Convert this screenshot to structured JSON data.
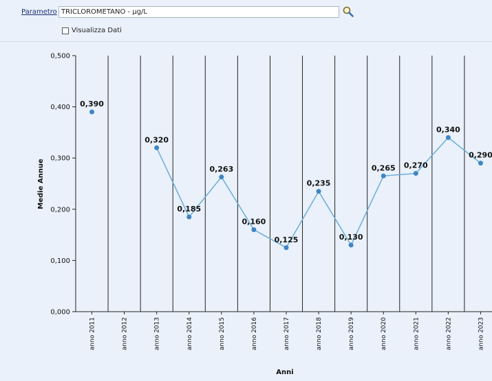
{
  "form": {
    "param_label": "Parametro",
    "param_value": "TRICLOROMETANO - µg/L",
    "search_icon": "magnifier-icon",
    "show_data_label": "Visualizza Dati",
    "show_data_checked": false
  },
  "colors": {
    "background": "#eaf1fa",
    "series_line": "#6aaed6",
    "series_point": "#3e86c4",
    "label_color": "#111111"
  },
  "chart_data": {
    "type": "line",
    "xlabel": "Anni",
    "ylabel": "Medie Annue",
    "ylim": [
      0,
      0.5
    ],
    "yticks": [
      "0,000",
      "0,100",
      "0,200",
      "0,300",
      "0,400",
      "0,500"
    ],
    "ytick_values": [
      0,
      0.1,
      0.2,
      0.3,
      0.4,
      0.5
    ],
    "grid": "vertical",
    "categories": [
      "anno 2011",
      "anno 2012",
      "anno 2013",
      "anno 2014",
      "anno 2015",
      "anno 2016",
      "anno 2017",
      "anno 2018",
      "anno 2019",
      "anno 2020",
      "anno 2021",
      "anno 2022",
      "anno 2023"
    ],
    "series": [
      {
        "values": [
          0.39,
          null,
          0.32,
          0.185,
          0.263,
          0.16,
          0.125,
          0.235,
          0.13,
          0.265,
          0.27,
          0.34,
          0.29
        ],
        "labels": [
          "0,390",
          "",
          "0,320",
          "0,185",
          "0,263",
          "0,160",
          "0,125",
          "0,235",
          "0,130",
          "0,265",
          "0,270",
          "0,340",
          "0,290"
        ]
      }
    ]
  }
}
